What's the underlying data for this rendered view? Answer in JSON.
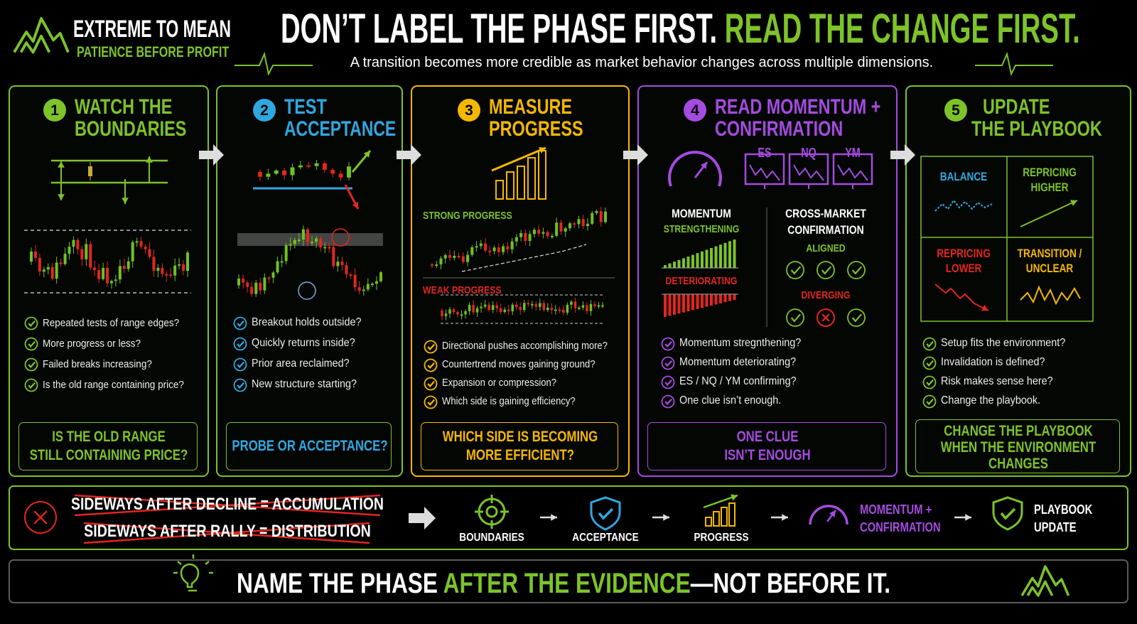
{
  "header": {
    "brand": "EXTREME TO MEAN",
    "tagline": "PATIENCE BEFORE PROFIT",
    "headline": "DON’T LABEL THE PHASE FIRST.",
    "headline_accent": "READ THE CHANGE FIRST.",
    "subtitle": "A transition becomes more credible as market behavior changes across multiple dimensions."
  },
  "steps": [
    {
      "number": 1,
      "title": [
        "WATCH THE",
        "BOUNDARIES"
      ],
      "checklist": [
        "Repeated tests of range edges?",
        "More progress or less?",
        "Failed breaks increasing?",
        "Is the old range containing price?"
      ],
      "callout": [
        "IS THE OLD RANGE",
        "STILL CONTAINING PRICE?"
      ]
    },
    {
      "number": 2,
      "title": [
        "TEST",
        "ACCEPTANCE"
      ],
      "checklist": [
        "Breakout holds outside?",
        "Quickly returns inside?",
        "Prior area reclaimed?",
        "New structure starting?"
      ],
      "callout": [
        "PROBE OR ACCEPTANCE?"
      ]
    },
    {
      "number": 3,
      "title": [
        "MEASURE",
        "PROGRESS"
      ],
      "labels": {
        "strong": "STRONG PROGRESS",
        "weak": "WEAK PROGRESS"
      },
      "checklist": [
        "Directional pushes accomplishing more?",
        "Countertrend moves gaining ground?",
        "Expansion or compression?",
        "Which side is gaining efficiency?"
      ],
      "callout": [
        "WHICH SIDE IS BECOMING",
        "MORE EFFICIENT?"
      ]
    },
    {
      "number": 4,
      "title": [
        "READ MOMENTUM +",
        "CONFIRMATION"
      ],
      "markets": [
        "ES",
        "NQ",
        "YM"
      ],
      "momentum": {
        "title": "MOMENTUM",
        "strengthening": "STRENGTHENING",
        "deteriorating": "DETERIORATING"
      },
      "cross_market": {
        "title": [
          "CROSS-MARKET",
          "CONFIRMATION"
        ],
        "aligned": "ALIGNED",
        "diverging": "DIVERGING"
      },
      "checklist": [
        "Momentum stregnthening?",
        "Momentum deteriorating?",
        "ES / NQ / YM confirming?",
        "One clue isn’t enough."
      ],
      "callout": [
        "ONE CLUE",
        "ISN’T ENOUGH"
      ]
    },
    {
      "number": 5,
      "title": [
        "UPDATE",
        "THE PLAYBOOK"
      ],
      "regimes": [
        [
          "BALANCE"
        ],
        [
          "REPRICING",
          "HIGHER"
        ],
        [
          "REPRICING",
          "LOWER"
        ],
        [
          "TRANSITION /",
          "UNCLEAR"
        ]
      ],
      "checklist": [
        "Setup fits the environment?",
        "Invalidation is defined?",
        "Risk makes sense here?",
        "Change the playbook."
      ],
      "callout": [
        "CHANGE THE PLAYBOOK",
        "WHEN THE ENVIRONMENT",
        "CHANGES"
      ]
    }
  ],
  "myths": [
    "SIDEWAYS AFTER DECLINE = ACCUMULATION",
    "SIDEWAYS AFTER RALLY = DISTRIBUTION"
  ],
  "process": [
    [
      "BOUNDARIES"
    ],
    [
      "ACCEPTANCE"
    ],
    [
      "PROGRESS"
    ],
    [
      "MOMENTUM +",
      "CONFIRMATION"
    ],
    [
      "PLAYBOOK",
      "UPDATE"
    ]
  ],
  "footer": {
    "lead": "NAME THE PHASE ",
    "accent": "AFTER THE EVIDENCE",
    "tail": "—NOT BEFORE IT."
  }
}
